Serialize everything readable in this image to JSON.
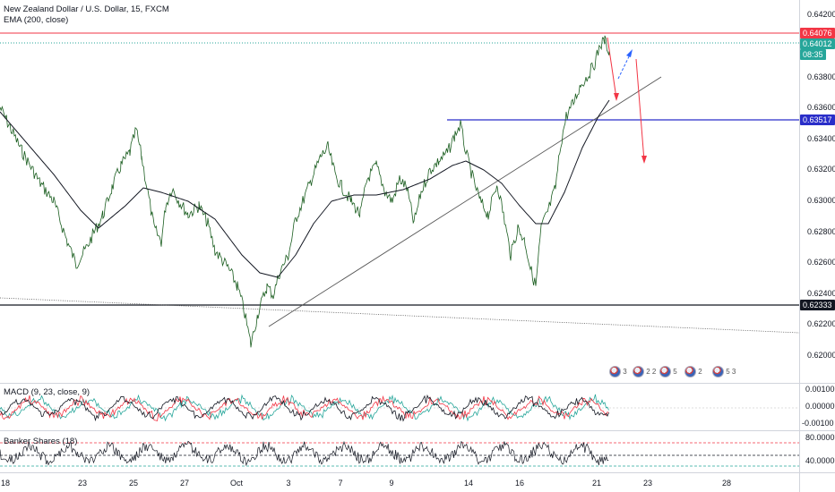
{
  "legend": {
    "symbol_line": "New Zealand Dollar / U.S. Dollar, 15, FXCM",
    "ema_line": "EMA (200, close)",
    "macd_line": "MACD (9, 23, close, 9)",
    "banker_line": "Banker Shares (18)"
  },
  "price_axis": {
    "ticks": [
      "0.64200",
      "0.63800",
      "0.63600",
      "0.63400",
      "0.63200",
      "0.63000",
      "0.62800",
      "0.62600",
      "0.62400",
      "0.62200",
      "0.62000"
    ]
  },
  "price_tags": {
    "red_level": "0.64076",
    "current_price": "0.64012",
    "countdown": "08:35",
    "blue_level": "0.63517",
    "black_level": "0.62333"
  },
  "macd_axis": {
    "ticks": [
      "0.00100",
      "0.00000",
      "-0.00100"
    ]
  },
  "banker_axis": {
    "ticks": [
      "80.0000",
      "40.0000"
    ]
  },
  "time_axis": {
    "ticks": [
      "18",
      "23",
      "25",
      "27",
      "Oct",
      "3",
      "7",
      "9",
      "14",
      "16",
      "21",
      "23",
      "28"
    ]
  },
  "events": [
    {
      "count": "3"
    },
    {
      "count": "2 2"
    },
    {
      "count": "5"
    },
    {
      "count": "2"
    },
    {
      "count": "5 3"
    }
  ],
  "colors": {
    "red_level": "#f23645",
    "current_price": "#26a69a",
    "blue_level": "#2a2ec9",
    "black_level": "#131722",
    "countdown_bg": "#26a69a",
    "price_line": "#1b5e20"
  }
}
